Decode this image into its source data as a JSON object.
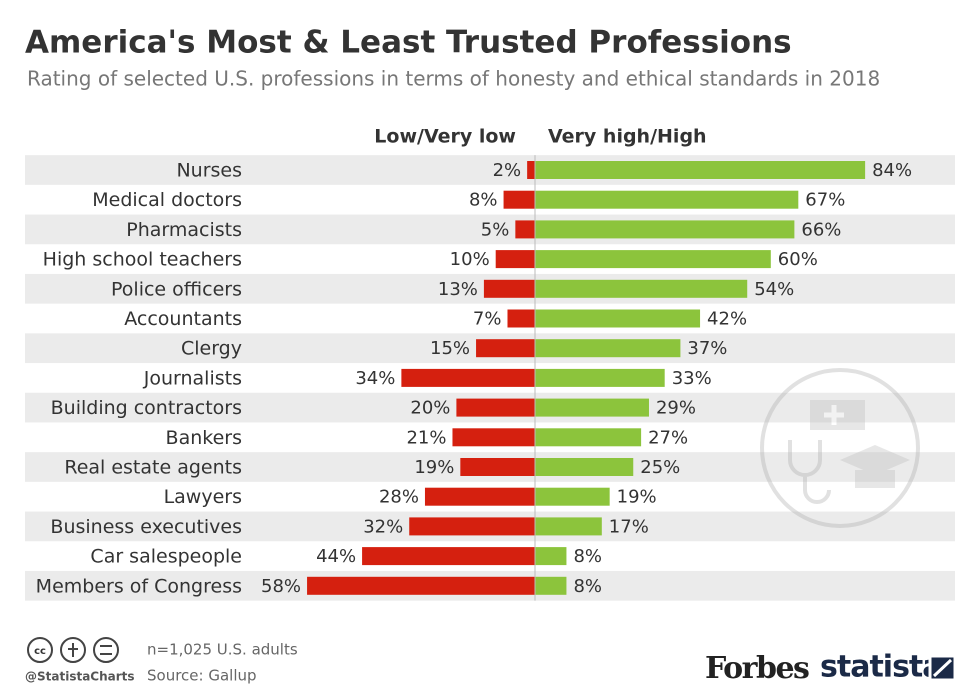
{
  "chart_data": {
    "type": "bar",
    "title": "America's Most & Least Trusted Professions",
    "subtitle": "Rating of selected U.S. professions in terms of honesty and ethical standards in 2018",
    "categories": [
      "Nurses",
      "Medical doctors",
      "Pharmacists",
      "High school teachers",
      "Police officers",
      "Accountants",
      "Clergy",
      "Journalists",
      "Building contractors",
      "Bankers",
      "Real estate agents",
      "Lawyers",
      "Business executives",
      "Car salespeople",
      "Members of Congress"
    ],
    "series": [
      {
        "name": "Low/Very low",
        "color": "#d5200f",
        "side": "left",
        "values": [
          2,
          8,
          5,
          10,
          13,
          7,
          15,
          34,
          20,
          21,
          19,
          28,
          32,
          44,
          58
        ],
        "value_labels": [
          "2%",
          "8%",
          "5%",
          "10%",
          "13%",
          "7%",
          "15%",
          "34%",
          "20%",
          "21%",
          "19%",
          "28%",
          "32%",
          "44%",
          "58%"
        ]
      },
      {
        "name": "Very high/High",
        "color": "#8cc43c",
        "side": "right",
        "values": [
          84,
          67,
          66,
          60,
          54,
          42,
          37,
          33,
          29,
          27,
          25,
          19,
          17,
          8,
          8
        ],
        "value_labels": [
          "84%",
          "67%",
          "66%",
          "60%",
          "54%",
          "42%",
          "37%",
          "33%",
          "29%",
          "27%",
          "25%",
          "19%",
          "17%",
          "8%",
          "8%"
        ]
      }
    ],
    "note": "n=1,025 U.S. adults",
    "source": "Source: Gallup",
    "handle": "@StatistaCharts",
    "brand_1": "Forbes",
    "brand_2": "statista"
  }
}
